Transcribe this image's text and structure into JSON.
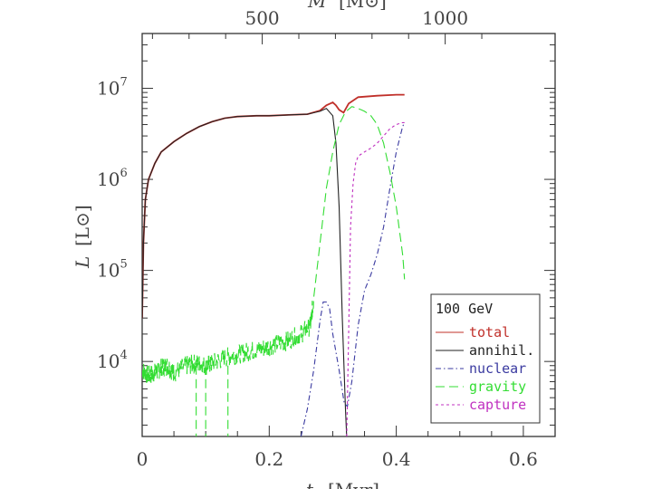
{
  "chart_data": {
    "type": "line",
    "title": "",
    "xlabel": "t",
    "xlabel_unit": "[Myr]",
    "ylabel": "L",
    "ylabel_unit": "[L⊙]",
    "top_xlabel": "M",
    "top_xlabel_unit": "[M⊙]",
    "xlim": [
      0,
      0.65
    ],
    "ylim": [
      1500,
      40000000
    ],
    "yscale": "log",
    "xticks": [
      {
        "value": 0,
        "label": "0"
      },
      {
        "value": 0.2,
        "label": "0.2"
      },
      {
        "value": 0.4,
        "label": "0.4"
      },
      {
        "value": 0.6,
        "label": "0.6"
      }
    ],
    "yticks": [
      {
        "value": 10000,
        "base": "10",
        "exp": "4"
      },
      {
        "value": 100000,
        "base": "10",
        "exp": "5"
      },
      {
        "value": 1000000,
        "base": "10",
        "exp": "6"
      },
      {
        "value": 10000000,
        "base": "10",
        "exp": "7"
      }
    ],
    "top_ticks": [
      {
        "t": 0.189,
        "label": "500"
      },
      {
        "t": 0.477,
        "label": "1000"
      }
    ],
    "grid": false,
    "legend": {
      "title": "100 GeV",
      "placement": "bottom-right",
      "entries": [
        {
          "label": "total",
          "color": "#c0302a",
          "dash": "solid"
        },
        {
          "label": "annihil.",
          "color": "#222222",
          "dash": "solid"
        },
        {
          "label": "nuclear",
          "color": "#3a3aa0",
          "dash": "dashdot"
        },
        {
          "label": "gravity",
          "color": "#33dd33",
          "dash": "dashed"
        },
        {
          "label": "capture",
          "color": "#c030c0",
          "dash": "dotted"
        }
      ]
    },
    "series": [
      {
        "name": "total",
        "color": "#c0302a",
        "dash": "solid",
        "x": [
          0,
          0.002,
          0.005,
          0.01,
          0.02,
          0.03,
          0.05,
          0.07,
          0.09,
          0.11,
          0.13,
          0.15,
          0.18,
          0.2,
          0.23,
          0.26,
          0.28,
          0.29,
          0.3,
          0.305,
          0.31,
          0.317,
          0.325,
          0.34,
          0.37,
          0.4,
          0.413
        ],
        "y": [
          30000,
          200000,
          600000,
          1000000,
          1500000,
          2000000,
          2600000,
          3200000,
          3800000,
          4300000,
          4700000,
          4900000,
          5000000,
          5000000,
          5100000,
          5200000,
          5700000,
          6500000,
          7000000,
          6500000,
          5800000,
          5400000,
          6800000,
          8000000,
          8300000,
          8500000,
          8500000
        ]
      },
      {
        "name": "annihil.",
        "color": "#222222",
        "dash": "solid",
        "x": [
          0,
          0.002,
          0.005,
          0.01,
          0.02,
          0.03,
          0.05,
          0.07,
          0.09,
          0.11,
          0.13,
          0.15,
          0.18,
          0.2,
          0.23,
          0.26,
          0.28,
          0.29,
          0.3,
          0.305,
          0.31,
          0.315,
          0.32,
          0.323,
          0.326,
          0.33
        ],
        "y": [
          30000,
          200000,
          600000,
          1000000,
          1500000,
          2000000,
          2600000,
          3200000,
          3800000,
          4300000,
          4700000,
          4900000,
          5000000,
          5000000,
          5100000,
          5200000,
          5600000,
          6000000,
          5000000,
          2500000,
          500000,
          30000,
          3000,
          1000,
          1000,
          1000
        ]
      },
      {
        "name": "nuclear",
        "color": "#3a3aa0",
        "dash": "dashdot",
        "x": [
          0.25,
          0.26,
          0.27,
          0.28,
          0.285,
          0.29,
          0.295,
          0.3,
          0.31,
          0.318,
          0.323,
          0.33,
          0.34,
          0.35,
          0.36,
          0.37,
          0.38,
          0.39,
          0.4,
          0.41,
          0.413
        ],
        "y": [
          1500,
          3000,
          8000,
          28000,
          45000,
          45000,
          38000,
          20000,
          8000,
          3500,
          3200,
          6000,
          25000,
          60000,
          90000,
          150000,
          300000,
          800000,
          2000000,
          3800000,
          4200000
        ]
      },
      {
        "name": "gravity",
        "color": "#33dd33",
        "dash": "dashed",
        "noisy": true,
        "x": [
          0,
          0.01,
          0.02,
          0.03,
          0.04,
          0.05,
          0.07,
          0.085,
          0.1,
          0.11,
          0.13,
          0.15,
          0.17,
          0.19,
          0.21,
          0.23,
          0.25,
          0.265,
          0.27,
          0.28,
          0.29,
          0.3,
          0.31,
          0.32,
          0.33,
          0.34,
          0.35,
          0.36,
          0.37,
          0.38,
          0.39,
          0.4,
          0.41,
          0.413
        ],
        "y": [
          8000,
          7000,
          7500,
          8500,
          9000,
          7500,
          9000,
          9500,
          9000,
          9500,
          11000,
          12000,
          13000,
          14000,
          15500,
          17000,
          20000,
          25000,
          50000,
          200000,
          800000,
          2000000,
          4000000,
          5500000,
          6300000,
          6000000,
          5600000,
          5000000,
          4000000,
          2500000,
          1200000,
          500000,
          150000,
          80000
        ]
      },
      {
        "name": "capture",
        "color": "#c030c0",
        "dash": "dotted",
        "x": [
          0.322,
          0.325,
          0.328,
          0.332,
          0.336,
          0.34,
          0.35,
          0.36,
          0.37,
          0.38,
          0.39,
          0.4,
          0.41,
          0.413
        ],
        "y": [
          1500,
          20000,
          300000,
          900000,
          1500000,
          1800000,
          2000000,
          2200000,
          2500000,
          3000000,
          3600000,
          4000000,
          4200000,
          4200000
        ]
      }
    ]
  }
}
